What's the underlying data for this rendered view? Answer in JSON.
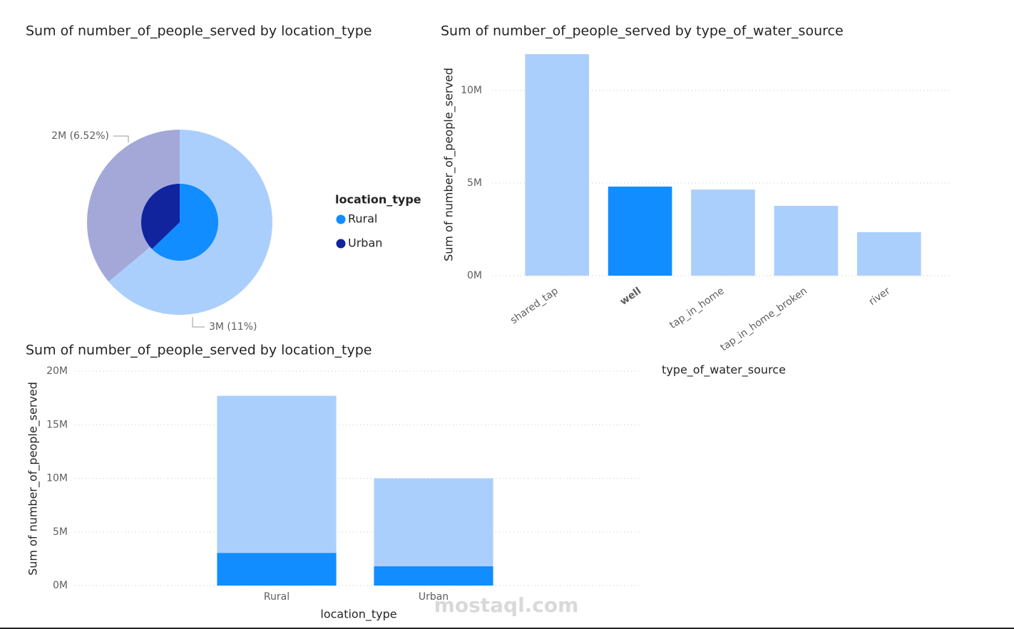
{
  "chart_data": [
    {
      "type": "pie",
      "title": "Sum of number_of_people_served by location_type",
      "categories": [
        "Rural",
        "Urban"
      ],
      "values": [
        17700000,
        10000000
      ],
      "colors": [
        "#abcffc",
        "#a3a8d9"
      ],
      "highlight_values": [
        3047000,
        1806000
      ],
      "highlight_colors": [
        "#118dff",
        "#12239e"
      ],
      "value_labels": [
        "3M (11%)",
        "2M (6.52%)"
      ],
      "legend_title": "location_type",
      "legend": "right"
    },
    {
      "type": "bar",
      "title": "Sum of number_of_people_served by type_of_water_source",
      "x_label": "type_of_water_source",
      "y_label": "Sum of number_of_people_served",
      "categories": [
        "shared_tap",
        "well",
        "tap_in_home",
        "tap_in_home_broken",
        "river"
      ],
      "values": [
        11960000,
        4810000,
        4650000,
        3770000,
        2350000
      ],
      "colors": [
        "#abcffc",
        "#118dff",
        "#abcffc",
        "#abcffc",
        "#abcffc"
      ],
      "selected_category": "well",
      "ylim": [
        0,
        12000000
      ],
      "yticks": [
        {
          "value": 0,
          "label": "0M"
        },
        {
          "value": 5000000,
          "label": "5M"
        },
        {
          "value": 10000000,
          "label": "10M"
        }
      ],
      "grid": true
    },
    {
      "type": "stacked_bar",
      "title": "Sum of number_of_people_served by location_type",
      "x_label": "location_type",
      "y_label": "Sum of number_of_people_served",
      "categories": [
        "Rural",
        "Urban"
      ],
      "series": [
        {
          "color": "#118dff",
          "values": [
            3047000,
            1806000
          ]
        },
        {
          "color": "#abcffc",
          "values": [
            14653000,
            8194000
          ]
        }
      ],
      "ylim": [
        0,
        20000000
      ],
      "yticks": [
        {
          "value": 0,
          "label": "0M"
        },
        {
          "value": 5000000,
          "label": "5M"
        },
        {
          "value": 10000000,
          "label": "10M"
        },
        {
          "value": 15000000,
          "label": "15M"
        },
        {
          "value": 20000000,
          "label": "20M"
        }
      ],
      "grid": true
    }
  ],
  "watermark": "mostaql.com"
}
